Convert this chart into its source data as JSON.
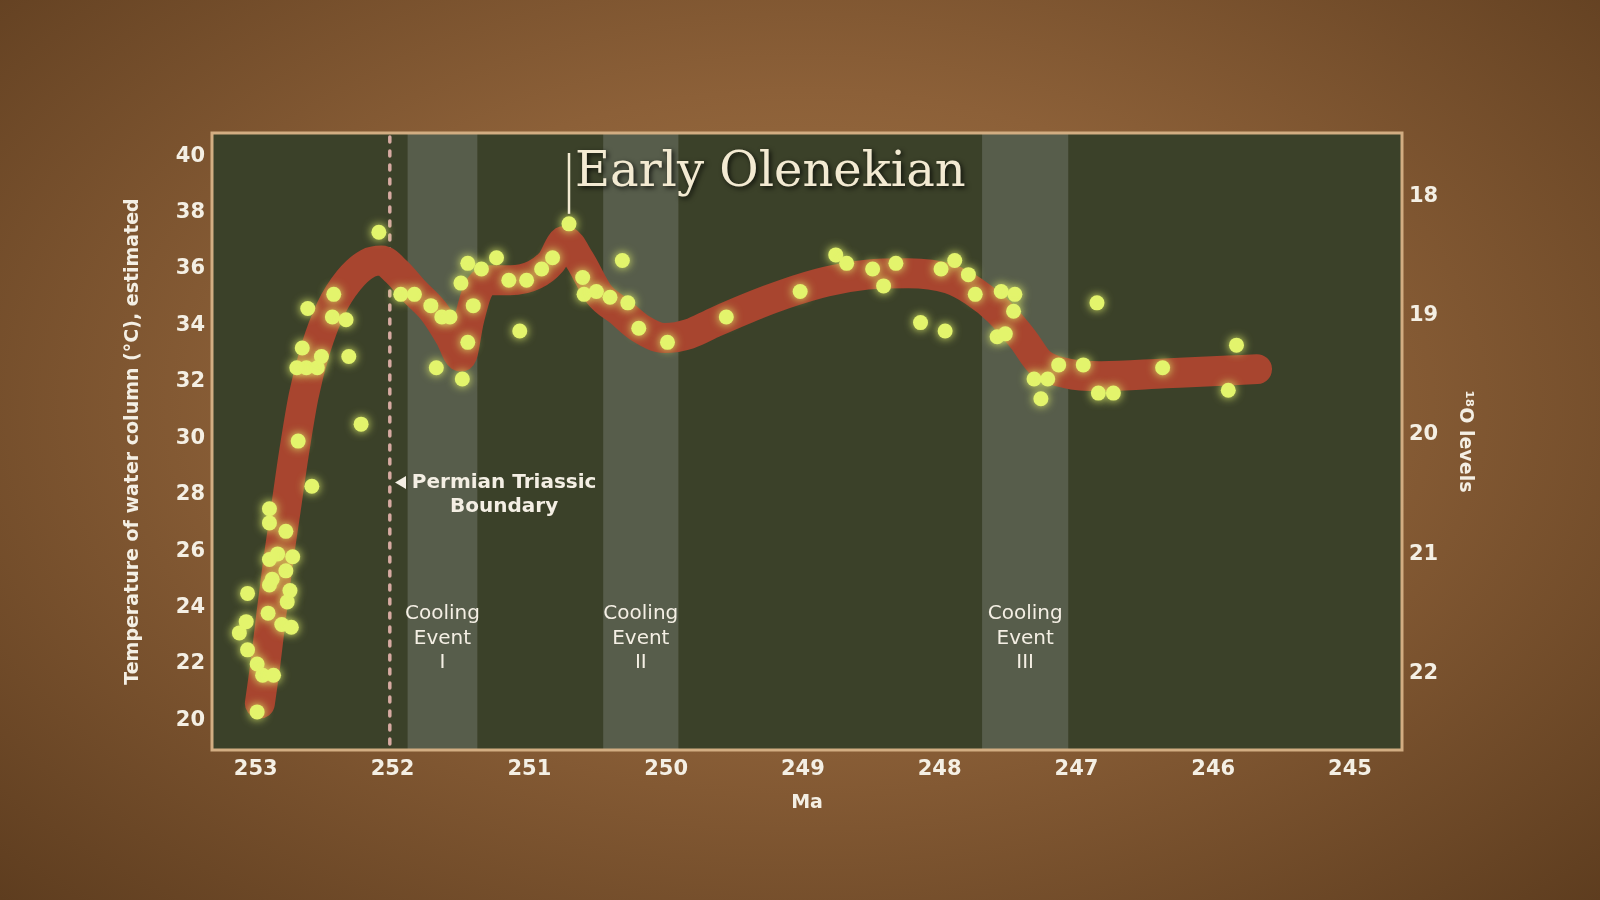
{
  "chart_data": {
    "type": "scatter",
    "xlabel": "Ma",
    "ylabel": "Temperature of water column (°C), estimated",
    "y2label": "¹⁸O levels",
    "xlim": [
      253.32,
      244.62
    ],
    "xticks": [
      253,
      252,
      251,
      250,
      249,
      248,
      247,
      246,
      245
    ],
    "ylim": [
      18.95,
      40.82
    ],
    "yticks": [
      20,
      22,
      24,
      26,
      28,
      30,
      32,
      34,
      36,
      38,
      40
    ],
    "y2lim": [
      22.64,
      17.47
    ],
    "y2ticks": [
      18,
      19,
      20,
      21,
      22
    ],
    "grid": false,
    "legend": false,
    "marker": "circle",
    "series": [
      {
        "type": "line",
        "color": "#a8452f",
        "marker": "none",
        "x": [
          252.97,
          252.93,
          252.89,
          252.84,
          252.78,
          252.72,
          252.65,
          252.56,
          252.45,
          252.32,
          252.18,
          252.08,
          251.97,
          251.84,
          251.7,
          251.58,
          251.5,
          251.44,
          251.38,
          251.29,
          251.14,
          250.96,
          250.84,
          250.74,
          250.63,
          250.49,
          250.34,
          250.19,
          250.01,
          249.83,
          249.65,
          249.41,
          249.14,
          248.83,
          248.53,
          248.23,
          247.93,
          247.75,
          247.57,
          247.39,
          247.27,
          247.07,
          246.82,
          246.35,
          245.89,
          245.68
        ],
        "values": [
          20.6,
          22,
          23.6,
          25.5,
          27.5,
          29.5,
          31.5,
          33.2,
          34.6,
          35.6,
          36.2,
          36.3,
          35.9,
          35.2,
          34.5,
          33.6,
          32.9,
          34.2,
          35.2,
          35.6,
          35.6,
          35.8,
          36.25,
          37,
          36.3,
          35.1,
          34.5,
          33.9,
          33.55,
          33.7,
          34.1,
          34.6,
          35.1,
          35.55,
          35.8,
          35.85,
          35.65,
          35.2,
          34.5,
          33.5,
          32.7,
          32.3,
          32.2,
          32.3,
          32.4,
          32.45
        ]
      },
      {
        "color": "#e3f46c",
        "x": [
          252.1,
          253.12,
          253.07,
          253.06,
          253.06,
          252.99,
          252.95,
          252.87,
          252.99,
          252.91,
          252.81,
          252.74,
          252.77,
          252.75,
          252.9,
          252.88,
          252.78,
          252.9,
          252.84,
          252.73,
          252.78,
          252.9,
          252.9,
          252.59,
          252.69,
          252.7,
          252.63,
          252.55,
          252.66,
          252.52,
          252.62,
          252.44,
          252.43,
          252.34,
          252.32,
          252.23,
          251.94,
          251.84,
          251.72,
          251.64,
          251.68,
          251.58,
          251.5,
          251.45,
          251.41,
          251.45,
          251.49,
          251.35,
          251.24,
          251.15,
          251.02,
          251.07,
          250.91,
          250.83,
          250.71,
          250.61,
          250.6,
          250.51,
          250.41,
          250.32,
          250.28,
          250.2,
          249.99,
          249.56,
          249.02,
          248.76,
          248.68,
          248.49,
          248.41,
          248.32,
          247.99,
          247.89,
          247.79,
          247.74,
          248.14,
          247.96,
          247.55,
          247.45,
          247.46,
          247.58,
          247.52,
          247.31,
          247.21,
          247.26,
          247.13,
          246.85,
          246.95,
          246.84,
          246.73,
          246.37,
          245.83,
          245.89
        ],
        "values": [
          37.3,
          23.1,
          23.5,
          24.5,
          22.5,
          22,
          21.6,
          21.6,
          20.3,
          23.8,
          23.4,
          23.3,
          24.2,
          24.6,
          24.8,
          25,
          25.3,
          25.7,
          25.9,
          25.8,
          26.7,
          27,
          27.5,
          28.3,
          29.9,
          32.5,
          32.5,
          32.5,
          33.2,
          32.9,
          34.6,
          34.3,
          35.1,
          34.2,
          32.9,
          30.5,
          35.1,
          35.1,
          34.7,
          34.3,
          32.5,
          34.3,
          35.5,
          36.2,
          34.7,
          33.4,
          32.1,
          36,
          36.4,
          35.6,
          35.6,
          33.8,
          36,
          36.4,
          37.6,
          35.7,
          35.1,
          35.2,
          35,
          36.3,
          34.8,
          33.9,
          33.4,
          34.3,
          35.2,
          36.5,
          36.2,
          36,
          35.4,
          36.2,
          36,
          36.3,
          35.8,
          35.1,
          34.1,
          33.8,
          35.2,
          35.1,
          34.5,
          33.6,
          33.7,
          32.1,
          32.1,
          31.4,
          32.6,
          34.8,
          32.6,
          31.6,
          31.6,
          32.5,
          33.3,
          31.7
        ]
      }
    ],
    "ref_lines": [
      {
        "axis": "x",
        "value": 252.02,
        "label": "Permian Triassic Boundary",
        "color": "#d7aaa2",
        "line_style": "dashed"
      }
    ],
    "bands": [
      {
        "axis": "x",
        "from": 251.89,
        "to": 251.38,
        "label": "Cooling Event I",
        "color": "#575d4b"
      },
      {
        "axis": "x",
        "from": 250.46,
        "to": 249.91,
        "label": "Cooling Event II",
        "color": "#575d4b"
      },
      {
        "axis": "x",
        "from": 247.69,
        "to": 247.06,
        "label": "Cooling Event III",
        "color": "#575d4b"
      }
    ],
    "annotations": [
      {
        "text": "Early Olenekian",
        "x": 250.71,
        "y": 37.6
      }
    ]
  }
}
